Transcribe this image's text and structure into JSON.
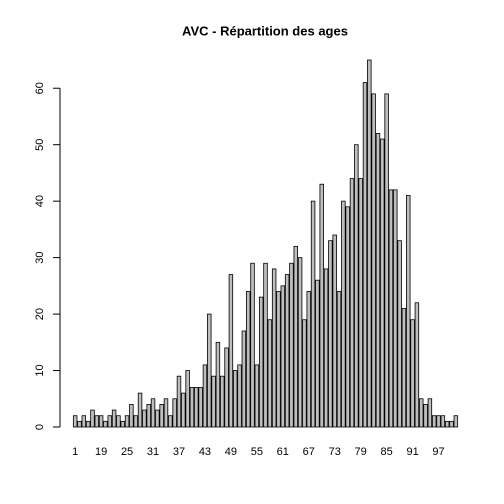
{
  "chart_data": {
    "type": "bar",
    "title": "AVC - Répartition des ages",
    "categories": [
      "1",
      null,
      null,
      null,
      null,
      null,
      "19",
      null,
      null,
      null,
      null,
      null,
      "25",
      null,
      null,
      null,
      null,
      null,
      "31",
      null,
      null,
      null,
      null,
      null,
      "37",
      null,
      null,
      null,
      null,
      null,
      "43",
      null,
      null,
      null,
      null,
      null,
      "49",
      null,
      null,
      null,
      null,
      null,
      "55",
      null,
      null,
      null,
      null,
      null,
      "61",
      null,
      null,
      null,
      null,
      null,
      "67",
      null,
      null,
      null,
      null,
      null,
      "73",
      null,
      null,
      null,
      null,
      null,
      "79",
      null,
      null,
      null,
      null,
      null,
      "85",
      null,
      null,
      null,
      null,
      null,
      "91",
      null,
      null,
      null,
      null,
      null,
      "97",
      null,
      null,
      null,
      null
    ],
    "values": [
      2,
      1,
      2,
      1,
      3,
      2,
      2,
      1,
      2,
      3,
      2,
      1,
      2,
      4,
      2,
      6,
      3,
      4,
      5,
      3,
      4,
      5,
      2,
      5,
      9,
      6,
      10,
      7,
      7,
      7,
      11,
      20,
      9,
      15,
      9,
      14,
      27,
      10,
      11,
      17,
      24,
      29,
      11,
      23,
      29,
      19,
      28,
      24,
      25,
      27,
      29,
      32,
      30,
      19,
      24,
      40,
      26,
      43,
      28,
      33,
      34,
      24,
      40,
      39,
      44,
      50,
      44,
      61,
      65,
      59,
      52,
      51,
      59,
      42,
      42,
      33,
      21,
      41,
      19,
      22,
      5,
      4,
      5,
      2,
      2,
      2,
      1,
      1,
      2
    ],
    "color": "#bebebe",
    "ylim": [
      0,
      65
    ],
    "yticks": [
      0,
      10,
      20,
      30,
      40,
      50,
      60
    ]
  }
}
